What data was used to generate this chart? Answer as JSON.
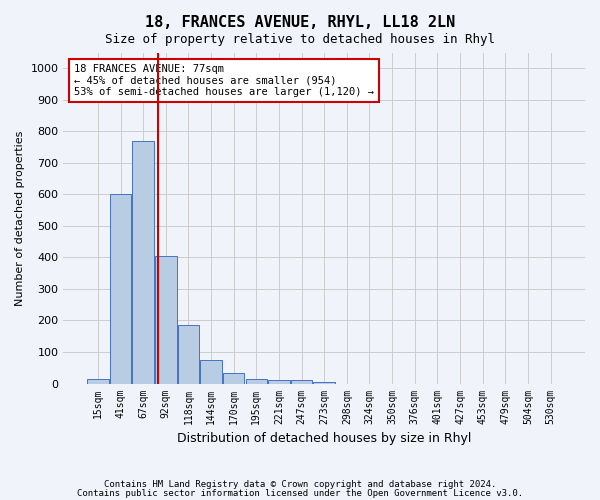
{
  "title1": "18, FRANCES AVENUE, RHYL, LL18 2LN",
  "title2": "Size of property relative to detached houses in Rhyl",
  "xlabel": "Distribution of detached houses by size in Rhyl",
  "ylabel": "Number of detached properties",
  "footer1": "Contains HM Land Registry data © Crown copyright and database right 2024.",
  "footer2": "Contains public sector information licensed under the Open Government Licence v3.0.",
  "bin_labels": [
    "15sqm",
    "41sqm",
    "67sqm",
    "92sqm",
    "118sqm",
    "144sqm",
    "170sqm",
    "195sqm",
    "221sqm",
    "247sqm",
    "273sqm",
    "298sqm",
    "324sqm",
    "350sqm",
    "376sqm",
    "401sqm",
    "427sqm",
    "453sqm",
    "479sqm",
    "504sqm",
    "530sqm"
  ],
  "bar_values": [
    15,
    600,
    770,
    405,
    185,
    75,
    35,
    15,
    10,
    10,
    5,
    0,
    0,
    0,
    0,
    0,
    0,
    0,
    0,
    0,
    0
  ],
  "bar_color": "#b8cce4",
  "bar_edge_color": "#4472c4",
  "grid_color": "#cccccc",
  "vline_x": 2.65,
  "vline_color": "#cc0000",
  "annotation_text": "18 FRANCES AVENUE: 77sqm\n← 45% of detached houses are smaller (954)\n53% of semi-detached houses are larger (1,120) →",
  "annotation_box_color": "#ffffff",
  "annotation_box_edge_color": "#cc0000",
  "ylim": [
    0,
    1050
  ],
  "yticks": [
    0,
    100,
    200,
    300,
    400,
    500,
    600,
    700,
    800,
    900,
    1000
  ],
  "background_color": "#f0f4fa"
}
